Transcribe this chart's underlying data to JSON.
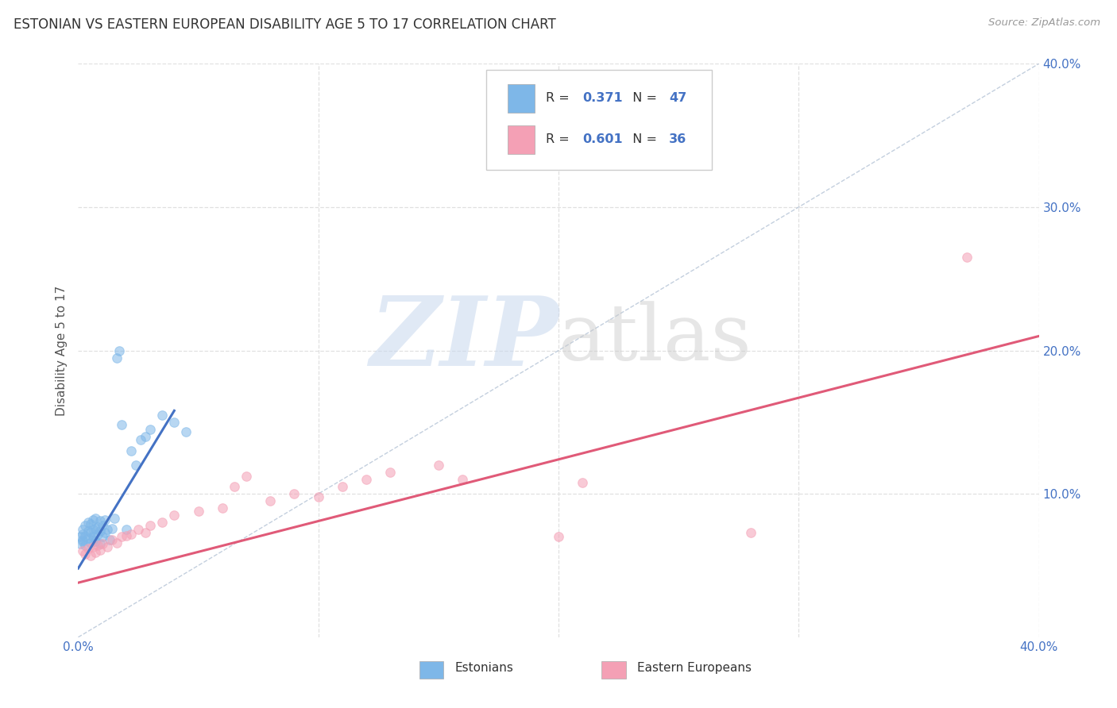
{
  "title": "ESTONIAN VS EASTERN EUROPEAN DISABILITY AGE 5 TO 17 CORRELATION CHART",
  "source": "Source: ZipAtlas.com",
  "ylabel": "Disability Age 5 to 17",
  "xlim": [
    0.0,
    0.4
  ],
  "ylim": [
    0.0,
    0.4
  ],
  "estonian_color": "#7eb7e8",
  "eastern_color": "#f4a0b5",
  "estonian_line_color": "#4472c4",
  "eastern_line_color": "#e05a78",
  "diagonal_color": "#b0b0b0",
  "estonian_R": "0.371",
  "estonian_N": "47",
  "eastern_R": "0.601",
  "eastern_N": "36",
  "legend_label_estonian": "Estonians",
  "legend_label_eastern": "Eastern Europeans",
  "watermark_zip": "ZIP",
  "watermark_atlas": "atlas",
  "background_color": "#ffffff",
  "grid_color": "#dddddd",
  "title_color": "#333333",
  "axis_color": "#4472c4",
  "marker_size": 70,
  "marker_alpha": 0.55,
  "estonian_x": [
    0.001,
    0.001,
    0.002,
    0.002,
    0.002,
    0.002,
    0.003,
    0.003,
    0.003,
    0.004,
    0.004,
    0.004,
    0.005,
    0.005,
    0.005,
    0.006,
    0.006,
    0.006,
    0.006,
    0.007,
    0.007,
    0.007,
    0.008,
    0.008,
    0.009,
    0.009,
    0.009,
    0.01,
    0.01,
    0.011,
    0.011,
    0.012,
    0.013,
    0.014,
    0.015,
    0.016,
    0.017,
    0.018,
    0.02,
    0.022,
    0.024,
    0.026,
    0.028,
    0.03,
    0.035,
    0.04,
    0.045
  ],
  "estonian_y": [
    0.065,
    0.07,
    0.067,
    0.072,
    0.075,
    0.068,
    0.064,
    0.071,
    0.078,
    0.069,
    0.074,
    0.08,
    0.066,
    0.073,
    0.079,
    0.068,
    0.075,
    0.082,
    0.07,
    0.067,
    0.076,
    0.083,
    0.072,
    0.077,
    0.065,
    0.074,
    0.081,
    0.07,
    0.078,
    0.073,
    0.082,
    0.075,
    0.068,
    0.076,
    0.083,
    0.195,
    0.2,
    0.148,
    0.075,
    0.13,
    0.12,
    0.138,
    0.14,
    0.145,
    0.155,
    0.15,
    0.143
  ],
  "eastern_x": [
    0.002,
    0.003,
    0.004,
    0.005,
    0.006,
    0.007,
    0.008,
    0.009,
    0.01,
    0.012,
    0.014,
    0.016,
    0.018,
    0.02,
    0.022,
    0.025,
    0.028,
    0.03,
    0.035,
    0.04,
    0.05,
    0.06,
    0.065,
    0.07,
    0.08,
    0.09,
    0.1,
    0.11,
    0.12,
    0.13,
    0.15,
    0.16,
    0.2,
    0.21,
    0.28,
    0.37
  ],
  "eastern_y": [
    0.06,
    0.058,
    0.062,
    0.057,
    0.063,
    0.059,
    0.064,
    0.061,
    0.065,
    0.063,
    0.068,
    0.066,
    0.07,
    0.071,
    0.072,
    0.075,
    0.073,
    0.078,
    0.08,
    0.085,
    0.088,
    0.09,
    0.105,
    0.112,
    0.095,
    0.1,
    0.098,
    0.105,
    0.11,
    0.115,
    0.12,
    0.11,
    0.07,
    0.108,
    0.073,
    0.265
  ],
  "est_line_x": [
    0.0,
    0.04
  ],
  "est_line_y": [
    0.048,
    0.158
  ],
  "east_line_x": [
    0.0,
    0.4
  ],
  "east_line_y": [
    0.038,
    0.21
  ]
}
